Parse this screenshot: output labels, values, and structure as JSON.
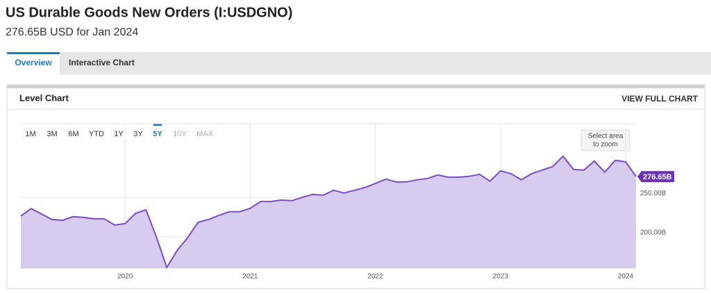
{
  "header": {
    "title": "US Durable Goods New Orders (I:USDGNO)",
    "subtitle": "276.65B USD for Jan 2024"
  },
  "tabs": {
    "items": [
      "Overview",
      "Interactive Chart"
    ],
    "active": "Overview"
  },
  "panel": {
    "title": "Level Chart",
    "link": "VIEW FULL CHART"
  },
  "range_buttons": {
    "items": [
      "1M",
      "3M",
      "6M",
      "YTD",
      "1Y",
      "3Y",
      "5Y",
      "10Y",
      "MAX"
    ],
    "active": "5Y",
    "disabled": [
      "10Y",
      "MAX"
    ]
  },
  "zoom_hint": [
    "Select area",
    "to zoom"
  ],
  "chart_data": {
    "type": "area",
    "x": [
      "2019-02",
      "2019-03",
      "2019-04",
      "2019-05",
      "2019-06",
      "2019-07",
      "2019-08",
      "2019-09",
      "2019-10",
      "2019-11",
      "2019-12",
      "2020-01",
      "2020-02",
      "2020-03",
      "2020-04",
      "2020-05",
      "2020-06",
      "2020-07",
      "2020-08",
      "2020-09",
      "2020-10",
      "2020-11",
      "2020-12",
      "2021-01",
      "2021-02",
      "2021-03",
      "2021-04",
      "2021-05",
      "2021-06",
      "2021-07",
      "2021-08",
      "2021-09",
      "2021-10",
      "2021-11",
      "2021-12",
      "2022-01",
      "2022-02",
      "2022-03",
      "2022-04",
      "2022-05",
      "2022-06",
      "2022-07",
      "2022-08",
      "2022-09",
      "2022-10",
      "2022-11",
      "2022-12",
      "2023-01",
      "2023-02",
      "2023-03",
      "2023-04",
      "2023-05",
      "2023-06",
      "2023-07",
      "2023-08",
      "2023-09",
      "2023-10",
      "2023-11",
      "2023-12",
      "2024-01"
    ],
    "values": [
      226.5,
      236,
      229,
      222,
      221,
      225.7,
      224.8,
      223,
      223,
      215,
      216.8,
      230,
      234.5,
      200,
      161,
      183,
      199,
      218.6,
      222,
      227.4,
      232,
      232,
      236.3,
      245,
      245,
      247,
      246,
      250.4,
      254,
      253,
      259.3,
      255.8,
      259.3,
      262.8,
      268,
      273.5,
      270,
      270,
      272.6,
      274.3,
      278.8,
      276,
      276,
      277,
      279.6,
      270.8,
      284,
      280.5,
      272.6,
      280.5,
      285,
      289.4,
      302.7,
      285.8,
      285,
      296.5,
      282.3,
      297.3,
      295.6,
      276.65
    ],
    "value_labels": [
      null,
      null,
      null,
      null,
      null,
      null,
      null,
      null,
      null,
      null,
      null,
      null,
      null,
      null,
      null,
      null,
      null,
      null,
      null,
      null,
      null,
      null,
      null,
      null,
      null,
      null,
      null,
      null,
      null,
      null,
      null,
      null,
      null,
      null,
      null,
      null,
      null,
      null,
      null,
      null,
      null,
      null,
      null,
      null,
      null,
      null,
      null,
      null,
      null,
      null,
      null,
      null,
      null,
      null,
      null,
      null,
      null,
      null,
      null,
      "276.65B"
    ],
    "color": "#7a4cc2",
    "fill_color": "#d8cbf0",
    "label_color": "#6a35b5",
    "xlim": [
      "2019-02",
      "2024-01"
    ],
    "xticks": [
      2020,
      2021,
      2022,
      2023,
      2024
    ],
    "ylim": [
      160,
      344
    ],
    "yticks": [
      {
        "value": 200,
        "label": "200.00B"
      },
      {
        "value": 250,
        "label": "250.00B"
      }
    ],
    "grid": true
  }
}
